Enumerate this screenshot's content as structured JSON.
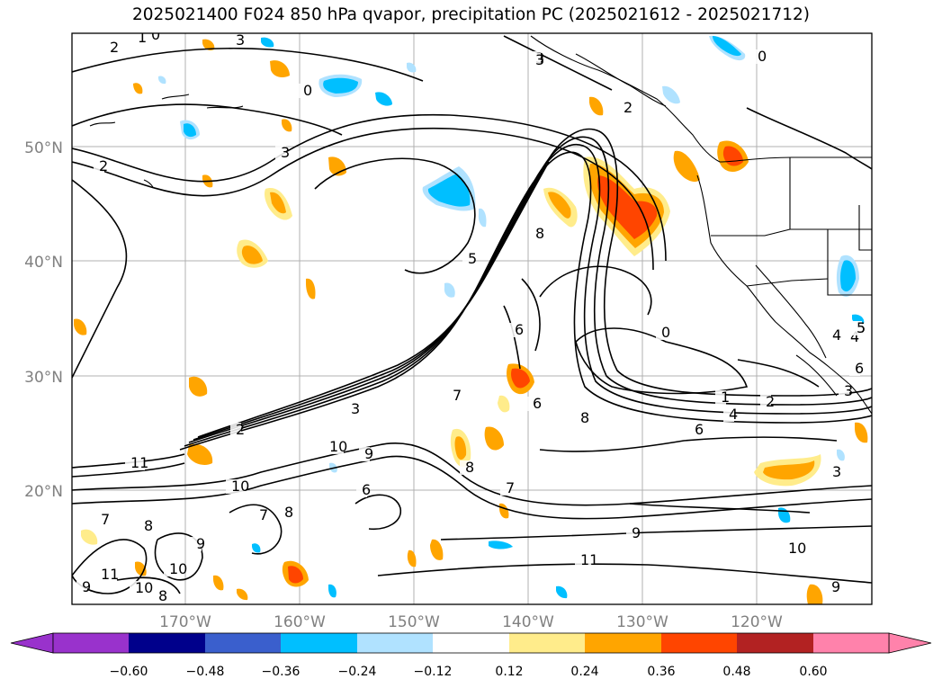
{
  "title": "2025021400 F024 850 hPa qvapor, precipitation PC (2025021612 - 2025021712)",
  "lat_ticks": [
    "50°N",
    "40°N",
    "30°N",
    "20°N"
  ],
  "lon_ticks": [
    "170°W",
    "160°W",
    "150°W",
    "140°W",
    "130°W",
    "120°W"
  ],
  "colorbar": {
    "ticks": [
      "−0.60",
      "−0.48",
      "−0.36",
      "−0.24",
      "−0.12",
      "0.12",
      "0.24",
      "0.36",
      "0.48",
      "0.60"
    ],
    "colors": [
      "#9932cc",
      "#00008b",
      "#3a5fcd",
      "#00bfff",
      "#b0e2ff",
      "#ffffff",
      "#ffec8b",
      "#ffa500",
      "#ff4500",
      "#b22222",
      "#ff82ab"
    ]
  },
  "contour_labels": [
    "0",
    "1",
    "2",
    "3",
    "0",
    "2",
    "3",
    "3",
    "2",
    "3",
    "5",
    "8",
    "6",
    "0",
    "1",
    "2",
    "4",
    "6",
    "8",
    "2",
    "3",
    "4",
    "5",
    "6",
    "7",
    "8",
    "9",
    "10",
    "11",
    "3",
    "7",
    "9",
    "11",
    "10",
    "9",
    "7",
    "8",
    "6",
    "7",
    "8",
    "9",
    "10",
    "11",
    "10",
    "8",
    "9",
    "10",
    "3",
    "4",
    "5",
    "6",
    "0"
  ]
}
